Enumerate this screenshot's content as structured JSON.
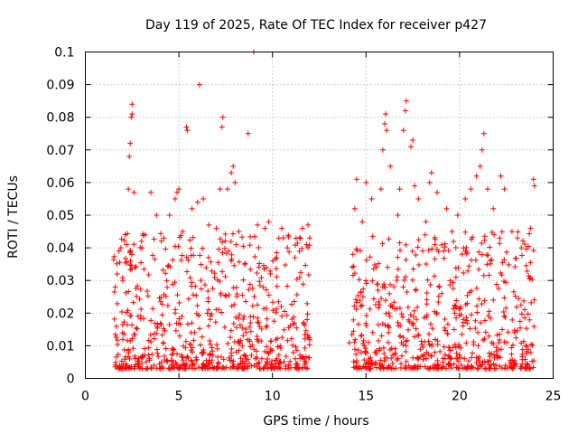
{
  "chart_data": {
    "type": "scatter",
    "title": "Day 119 of 2025, Rate Of TEC Index for receiver p427",
    "xlabel": "GPS time / hours",
    "ylabel": "ROTI / TECUs",
    "xlim": [
      0,
      25
    ],
    "ylim": [
      0,
      0.1
    ],
    "xticks": [
      "0",
      "5",
      "10",
      "15",
      "20",
      "25"
    ],
    "yticks": [
      "0",
      "0.01",
      "0.02",
      "0.03",
      "0.04",
      "0.05",
      "0.06",
      "0.07",
      "0.08",
      "0.09",
      "0.1"
    ],
    "grid": true,
    "marker": "+",
    "color": "#ff0000",
    "data_gap": [
      12.0,
      14.1
    ],
    "series": [
      {
        "points": [
          [
            1.6,
            0.028
          ],
          [
            1.7,
            0.032
          ],
          [
            1.8,
            0.039
          ],
          [
            1.9,
            0.04
          ],
          [
            2.0,
            0.03
          ],
          [
            2.2,
            0.041
          ],
          [
            2.3,
            0.058
          ],
          [
            2.35,
            0.068
          ],
          [
            2.4,
            0.072
          ],
          [
            2.45,
            0.08
          ],
          [
            2.5,
            0.081
          ],
          [
            2.5,
            0.084
          ],
          [
            2.6,
            0.057
          ],
          [
            3.0,
            0.042
          ],
          [
            3.2,
            0.044
          ],
          [
            3.5,
            0.057
          ],
          [
            3.8,
            0.05
          ],
          [
            4.2,
            0.043
          ],
          [
            4.5,
            0.05
          ],
          [
            4.8,
            0.055
          ],
          [
            4.9,
            0.057
          ],
          [
            5.0,
            0.058
          ],
          [
            5.2,
            0.045
          ],
          [
            5.4,
            0.077
          ],
          [
            5.45,
            0.076
          ],
          [
            5.7,
            0.052
          ],
          [
            6.0,
            0.054
          ],
          [
            6.1,
            0.09
          ],
          [
            6.3,
            0.055
          ],
          [
            6.6,
            0.047
          ],
          [
            7.0,
            0.046
          ],
          [
            7.2,
            0.058
          ],
          [
            7.3,
            0.077
          ],
          [
            7.35,
            0.08
          ],
          [
            7.6,
            0.058
          ],
          [
            7.8,
            0.063
          ],
          [
            7.9,
            0.065
          ],
          [
            8.0,
            0.06
          ],
          [
            8.2,
            0.045
          ],
          [
            8.7,
            0.075
          ],
          [
            9.0,
            0.1
          ],
          [
            9.2,
            0.047
          ],
          [
            9.6,
            0.046
          ],
          [
            9.8,
            0.048
          ],
          [
            10.5,
            0.046
          ],
          [
            10.8,
            0.04
          ],
          [
            11.2,
            0.037
          ],
          [
            11.6,
            0.046
          ],
          [
            11.9,
            0.047
          ],
          [
            14.3,
            0.038
          ],
          [
            14.4,
            0.052
          ],
          [
            14.5,
            0.061
          ],
          [
            14.8,
            0.048
          ],
          [
            15.0,
            0.06
          ],
          [
            15.3,
            0.055
          ],
          [
            15.8,
            0.058
          ],
          [
            15.9,
            0.07
          ],
          [
            16.0,
            0.078
          ],
          [
            16.05,
            0.081
          ],
          [
            16.1,
            0.076
          ],
          [
            16.3,
            0.065
          ],
          [
            16.7,
            0.05
          ],
          [
            16.8,
            0.058
          ],
          [
            17.0,
            0.076
          ],
          [
            17.1,
            0.082
          ],
          [
            17.15,
            0.085
          ],
          [
            17.4,
            0.071
          ],
          [
            17.5,
            0.073
          ],
          [
            17.6,
            0.059
          ],
          [
            17.8,
            0.055
          ],
          [
            18.2,
            0.048
          ],
          [
            18.4,
            0.06
          ],
          [
            18.5,
            0.063
          ],
          [
            18.8,
            0.057
          ],
          [
            19.3,
            0.052
          ],
          [
            19.6,
            0.045
          ],
          [
            19.9,
            0.05
          ],
          [
            20.3,
            0.055
          ],
          [
            20.6,
            0.058
          ],
          [
            20.9,
            0.062
          ],
          [
            21.1,
            0.065
          ],
          [
            21.2,
            0.07
          ],
          [
            21.3,
            0.075
          ],
          [
            21.5,
            0.058
          ],
          [
            21.8,
            0.052
          ],
          [
            22.2,
            0.062
          ],
          [
            22.4,
            0.058
          ],
          [
            22.8,
            0.045
          ],
          [
            23.3,
            0.04
          ],
          [
            23.8,
            0.046
          ],
          [
            23.95,
            0.061
          ],
          [
            24.0,
            0.059
          ]
        ]
      }
    ]
  }
}
